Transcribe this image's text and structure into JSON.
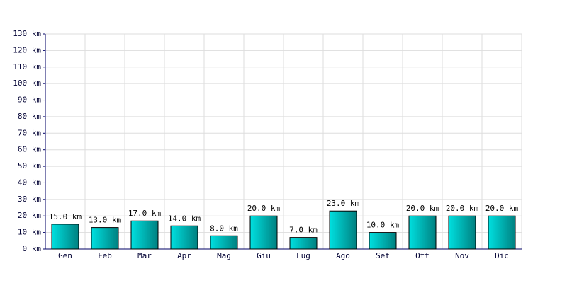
{
  "chart_data": {
    "type": "bar",
    "categories": [
      "Gen",
      "Feb",
      "Mar",
      "Apr",
      "Mag",
      "Giu",
      "Lug",
      "Ago",
      "Set",
      "Ott",
      "Nov",
      "Dic"
    ],
    "values": [
      15,
      13,
      17,
      14,
      8,
      20,
      7,
      23,
      10,
      20,
      20,
      20
    ],
    "value_labels": [
      "15.0 km",
      "13.0 km",
      "17.0 km",
      "14.0 km",
      "8.0 km",
      "20.0 km",
      "7.0 km",
      "23.0 km",
      "10.0 km",
      "20.0 km",
      "20.0 km",
      "20.0 km"
    ],
    "color": "#00e0e0",
    "ylim": [
      0,
      130
    ],
    "yticks": [
      {
        "value": 0,
        "label": "0 km"
      },
      {
        "value": 10,
        "label": "10 km"
      },
      {
        "value": 20,
        "label": "20 km"
      },
      {
        "value": 30,
        "label": "30 km"
      },
      {
        "value": 40,
        "label": "40 km"
      },
      {
        "value": 50,
        "label": "50 km"
      },
      {
        "value": 60,
        "label": "60 km"
      },
      {
        "value": 70,
        "label": "70 km"
      },
      {
        "value": 80,
        "label": "80 km"
      },
      {
        "value": 90,
        "label": "90 km"
      },
      {
        "value": 100,
        "label": "100 km"
      },
      {
        "value": 110,
        "label": "110 km"
      },
      {
        "value": 120,
        "label": "120 km"
      },
      {
        "value": 130,
        "label": "130 km"
      }
    ],
    "grid": true
  }
}
